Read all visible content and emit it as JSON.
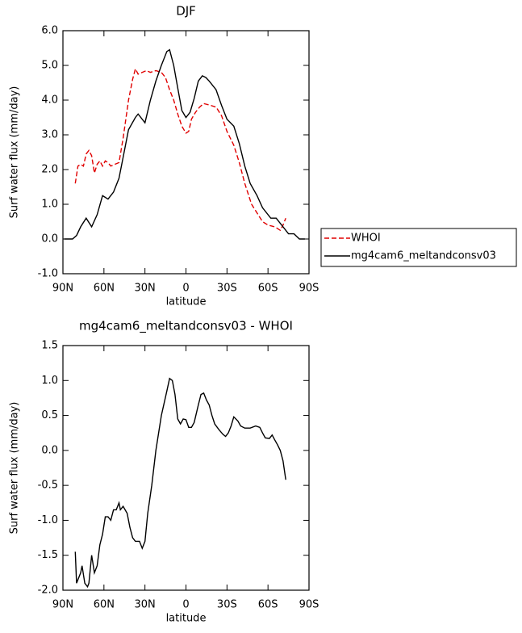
{
  "chart_data": [
    {
      "type": "line",
      "title": "DJF",
      "xlabel": "latitude",
      "ylabel": "Surf water flux (mm/day)",
      "xlim": [
        90,
        -90
      ],
      "xticks": [
        {
          "value": 90,
          "label": "90N"
        },
        {
          "value": 60,
          "label": "60N"
        },
        {
          "value": 30,
          "label": "30N"
        },
        0,
        {
          "value": -30,
          "label": "30S"
        },
        {
          "value": -60,
          "label": "60S"
        },
        {
          "value": -90,
          "label": "90S"
        }
      ],
      "ylim": [
        -1,
        6
      ],
      "yticks": [
        {
          "value": -1,
          "label": "-1.0"
        },
        {
          "value": 0,
          "label": "0.0"
        },
        {
          "value": 1,
          "label": "1.0"
        },
        {
          "value": 2,
          "label": "2.0"
        },
        {
          "value": 3,
          "label": "3.0"
        },
        {
          "value": 4,
          "label": "4.0"
        },
        {
          "value": 5,
          "label": "5.0"
        },
        {
          "value": 6,
          "label": "6.0"
        }
      ],
      "legend": "right",
      "series": [
        {
          "name": "WHOI",
          "color": "#e00000",
          "dash": true,
          "x": [
            81,
            79,
            77,
            75,
            73,
            71,
            69,
            67,
            65,
            63,
            61,
            59,
            57,
            55,
            52,
            49,
            46,
            42,
            39,
            37,
            35,
            32,
            29,
            26,
            22,
            18,
            15,
            12,
            9,
            6,
            3,
            0,
            -2,
            -4,
            -7,
            -10,
            -13,
            -18,
            -22,
            -26,
            -30,
            -35,
            -39,
            -43,
            -48,
            -52,
            -56,
            -60,
            -65,
            -69,
            -71,
            -73
          ],
          "values": [
            1.6,
            2.1,
            2.15,
            2.1,
            2.45,
            2.55,
            2.4,
            1.9,
            2.15,
            2.25,
            2.1,
            2.25,
            2.2,
            2.1,
            2.15,
            2.2,
            2.9,
            4.0,
            4.6,
            4.9,
            4.75,
            4.8,
            4.85,
            4.8,
            4.85,
            4.8,
            4.65,
            4.3,
            4.0,
            3.6,
            3.25,
            3.05,
            3.1,
            3.45,
            3.65,
            3.8,
            3.9,
            3.85,
            3.8,
            3.55,
            3.1,
            2.7,
            2.2,
            1.6,
            1.0,
            0.75,
            0.5,
            0.4,
            0.35,
            0.25,
            0.4,
            0.6
          ]
        },
        {
          "name": "mg4cam6_meltandconsv03",
          "color": "#000000",
          "dash": false,
          "x": [
            89,
            83,
            80,
            77,
            73,
            69,
            65,
            61,
            57,
            53,
            49,
            46,
            42,
            37,
            35,
            30,
            26,
            22,
            18,
            14,
            12,
            9,
            6,
            3,
            0,
            -3,
            -6,
            -9,
            -12,
            -14.5,
            -17,
            -22,
            -26,
            -30,
            -35,
            -39,
            -43,
            -47,
            -52,
            -56,
            -62,
            -66,
            -71,
            -75,
            -79,
            -83,
            -87
          ],
          "values": [
            0.0,
            0.0,
            0.1,
            0.35,
            0.6,
            0.35,
            0.7,
            1.25,
            1.15,
            1.35,
            1.75,
            2.35,
            3.15,
            3.5,
            3.6,
            3.35,
            4.0,
            4.55,
            5.0,
            5.4,
            5.45,
            5.0,
            4.35,
            3.7,
            3.5,
            3.65,
            4.05,
            4.55,
            4.7,
            4.65,
            4.55,
            4.3,
            3.85,
            3.45,
            3.25,
            2.75,
            2.1,
            1.6,
            1.25,
            0.9,
            0.6,
            0.6,
            0.35,
            0.15,
            0.15,
            0.0,
            0.0
          ]
        }
      ]
    },
    {
      "type": "line",
      "title": "mg4cam6_meltandconsv03 - WHOI",
      "xlabel": "latitude",
      "ylabel": "Surf water flux (mm/day)",
      "xlim": [
        90,
        -90
      ],
      "xticks": [
        {
          "value": 90,
          "label": "90N"
        },
        {
          "value": 60,
          "label": "60N"
        },
        {
          "value": 30,
          "label": "30N"
        },
        0,
        {
          "value": -30,
          "label": "30S"
        },
        {
          "value": -60,
          "label": "60S"
        },
        {
          "value": -90,
          "label": "90S"
        }
      ],
      "ylim": [
        -2,
        1.5
      ],
      "yticks": [
        {
          "value": -2,
          "label": "-2.0"
        },
        {
          "value": -1.5,
          "label": "-1.5"
        },
        {
          "value": -1,
          "label": "-1.0"
        },
        {
          "value": -0.5,
          "label": "-0.5"
        },
        {
          "value": 0,
          "label": "0.0"
        },
        0.5,
        {
          "value": 1,
          "label": "1.0"
        },
        1.5
      ],
      "series": [
        {
          "color": "#000000",
          "dash": false,
          "x": [
            81,
            80,
            77,
            76,
            74,
            72,
            71,
            69,
            67,
            65,
            63,
            61,
            59,
            57,
            55,
            53,
            51,
            49,
            48,
            46,
            43,
            41,
            39,
            37,
            34,
            32,
            30,
            28,
            25,
            22,
            18,
            14,
            12,
            10,
            8,
            6,
            4,
            2,
            0,
            -2,
            -4,
            -6,
            -9,
            -11,
            -13,
            -15,
            -17,
            -19,
            -21,
            -24,
            -27,
            -29,
            -31,
            -33,
            -35,
            -38,
            -40,
            -43,
            -47,
            -51,
            -54,
            -56,
            -58,
            -61,
            -63,
            -65,
            -67,
            -69,
            -71,
            -73
          ],
          "values": [
            -1.45,
            -1.9,
            -1.75,
            -1.65,
            -1.9,
            -1.95,
            -1.9,
            -1.5,
            -1.75,
            -1.65,
            -1.35,
            -1.2,
            -0.95,
            -0.95,
            -1.0,
            -0.85,
            -0.85,
            -0.75,
            -0.85,
            -0.8,
            -0.9,
            -1.1,
            -1.25,
            -1.3,
            -1.3,
            -1.4,
            -1.3,
            -0.9,
            -0.5,
            0.0,
            0.5,
            0.85,
            1.03,
            1.0,
            0.8,
            0.45,
            0.38,
            0.45,
            0.44,
            0.33,
            0.33,
            0.4,
            0.65,
            0.8,
            0.82,
            0.72,
            0.65,
            0.5,
            0.38,
            0.3,
            0.23,
            0.2,
            0.25,
            0.35,
            0.48,
            0.42,
            0.35,
            0.32,
            0.32,
            0.35,
            0.33,
            0.25,
            0.18,
            0.17,
            0.22,
            0.15,
            0.08,
            0.0,
            -0.15,
            -0.42
          ]
        }
      ]
    }
  ]
}
